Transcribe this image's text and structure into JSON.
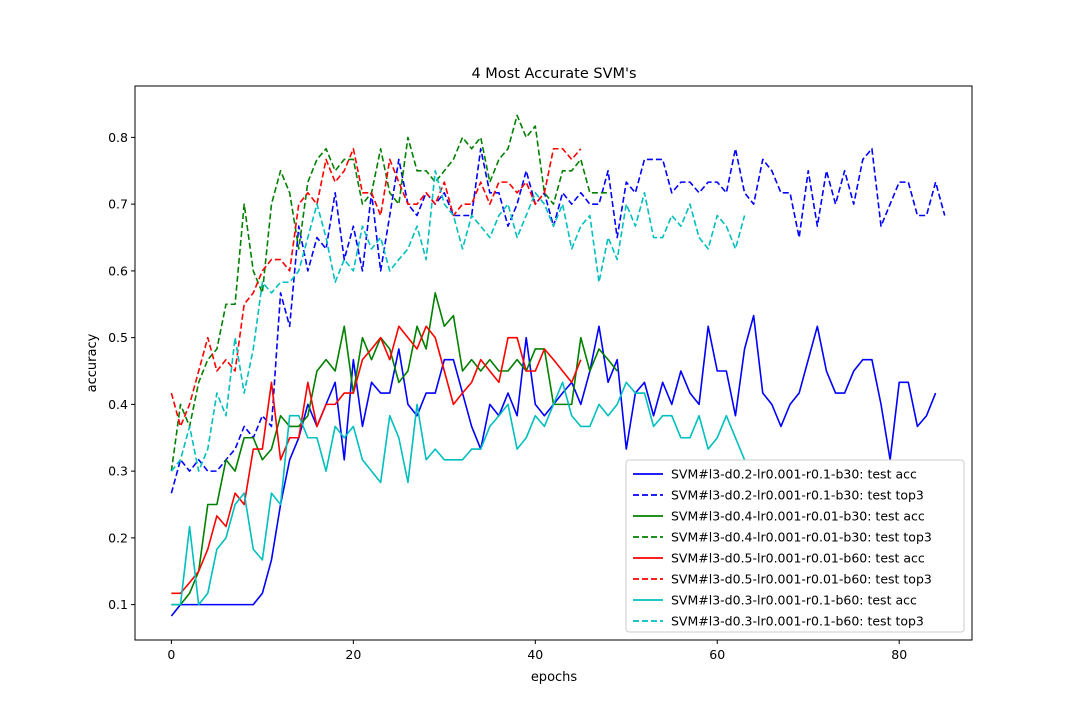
{
  "chart_data": {
    "type": "line",
    "title": "4 Most Accurate SVM's",
    "xlabel": "epochs",
    "ylabel": "accuracy",
    "xlim": [
      -4,
      88
    ],
    "ylim": [
      0.047,
      0.877
    ],
    "xticks": [
      0,
      20,
      40,
      60,
      80
    ],
    "yticks": [
      0.1,
      0.2,
      0.3,
      0.4,
      0.5,
      0.6,
      0.7,
      0.8
    ],
    "grid": false,
    "legend_position": "lower-right",
    "series": [
      {
        "name": "SVM#l3-d0.2-lr0.001-r0.1-b30: test acc",
        "color": "#0000ff",
        "dashed": false,
        "values": [
          0.083,
          0.1,
          0.1,
          0.1,
          0.1,
          0.1,
          0.1,
          0.1,
          0.1,
          0.1,
          0.117,
          0.167,
          0.25,
          0.317,
          0.35,
          0.4,
          0.367,
          0.4,
          0.433,
          0.317,
          0.467,
          0.367,
          0.433,
          0.417,
          0.417,
          0.483,
          0.4,
          0.383,
          0.417,
          0.417,
          0.467,
          0.467,
          0.417,
          0.367,
          0.333,
          0.4,
          0.383,
          0.417,
          0.383,
          0.5,
          0.4,
          0.383,
          0.4,
          0.417,
          0.433,
          0.4,
          0.45,
          0.517,
          0.433,
          0.467,
          0.333,
          0.417,
          0.433,
          0.383,
          0.433,
          0.4,
          0.45,
          0.417,
          0.4,
          0.517,
          0.45,
          0.45,
          0.383,
          0.483,
          0.533,
          0.417,
          0.4,
          0.367,
          0.4,
          0.417,
          0.467,
          0.517,
          0.45,
          0.417,
          0.417,
          0.45,
          0.467,
          0.467,
          0.4,
          0.317,
          0.433,
          0.433,
          0.367,
          0.383,
          0.417
        ]
      },
      {
        "name": "SVM#l3-d0.2-lr0.001-r0.1-b30: test top3",
        "color": "#0000ff",
        "dashed": true,
        "values": [
          0.267,
          0.317,
          0.3,
          0.317,
          0.3,
          0.3,
          0.317,
          0.333,
          0.367,
          0.35,
          0.383,
          0.367,
          0.567,
          0.517,
          0.667,
          0.6,
          0.65,
          0.633,
          0.717,
          0.617,
          0.667,
          0.6,
          0.717,
          0.6,
          0.683,
          0.767,
          0.7,
          0.683,
          0.717,
          0.7,
          0.717,
          0.683,
          0.683,
          0.683,
          0.783,
          0.717,
          0.717,
          0.667,
          0.7,
          0.75,
          0.7,
          0.717,
          0.667,
          0.717,
          0.7,
          0.717,
          0.7,
          0.7,
          0.75,
          0.65,
          0.733,
          0.717,
          0.767,
          0.767,
          0.767,
          0.717,
          0.733,
          0.733,
          0.717,
          0.733,
          0.733,
          0.717,
          0.783,
          0.717,
          0.7,
          0.767,
          0.75,
          0.717,
          0.717,
          0.65,
          0.75,
          0.667,
          0.75,
          0.7,
          0.75,
          0.7,
          0.767,
          0.783,
          0.667,
          0.7,
          0.733,
          0.733,
          0.683,
          0.683,
          0.733,
          0.683
        ]
      },
      {
        "name": "SVM#l3-d0.4-lr0.001-r0.01-b30: test acc",
        "color": "#008000",
        "dashed": false,
        "values": [
          0.1,
          0.1,
          0.117,
          0.15,
          0.25,
          0.25,
          0.317,
          0.3,
          0.35,
          0.35,
          0.317,
          0.333,
          0.383,
          0.367,
          0.367,
          0.383,
          0.45,
          0.467,
          0.45,
          0.517,
          0.417,
          0.5,
          0.467,
          0.5,
          0.483,
          0.433,
          0.45,
          0.517,
          0.483,
          0.567,
          0.517,
          0.533,
          0.45,
          0.467,
          0.45,
          0.467,
          0.45,
          0.45,
          0.467,
          0.45,
          0.483,
          0.483,
          0.4,
          0.4,
          0.4,
          0.5,
          0.45,
          0.483,
          0.467,
          0.45
        ]
      },
      {
        "name": "SVM#l3-d0.4-lr0.001-r0.01-b30: test top3",
        "color": "#008000",
        "dashed": true,
        "values": [
          0.3,
          0.4,
          0.367,
          0.433,
          0.467,
          0.483,
          0.55,
          0.55,
          0.7,
          0.6,
          0.567,
          0.7,
          0.75,
          0.717,
          0.633,
          0.733,
          0.767,
          0.783,
          0.75,
          0.767,
          0.767,
          0.7,
          0.717,
          0.783,
          0.717,
          0.7,
          0.8,
          0.75,
          0.75,
          0.733,
          0.75,
          0.767,
          0.8,
          0.783,
          0.8,
          0.733,
          0.767,
          0.783,
          0.833,
          0.8,
          0.817,
          0.717,
          0.7,
          0.75,
          0.75,
          0.767,
          0.717,
          0.717,
          0.717
        ]
      },
      {
        "name": "SVM#l3-d0.5-lr0.001-r0.01-b60: test acc",
        "color": "#ff0000",
        "dashed": false,
        "values": [
          0.117,
          0.117,
          0.133,
          0.15,
          0.183,
          0.233,
          0.217,
          0.267,
          0.25,
          0.333,
          0.333,
          0.433,
          0.317,
          0.35,
          0.35,
          0.433,
          0.367,
          0.4,
          0.4,
          0.417,
          0.417,
          0.467,
          0.483,
          0.5,
          0.467,
          0.517,
          0.5,
          0.483,
          0.517,
          0.5,
          0.45,
          0.4,
          0.417,
          0.433,
          0.467,
          0.45,
          0.433,
          0.5,
          0.5,
          0.45,
          0.45,
          0.483,
          0.467,
          0.45,
          0.433,
          0.467
        ]
      },
      {
        "name": "SVM#l3-d0.5-lr0.001-r0.01-b60: test top3",
        "color": "#ff0000",
        "dashed": true,
        "values": [
          0.417,
          0.367,
          0.4,
          0.45,
          0.5,
          0.45,
          0.467,
          0.45,
          0.55,
          0.567,
          0.6,
          0.617,
          0.617,
          0.6,
          0.7,
          0.717,
          0.7,
          0.767,
          0.733,
          0.75,
          0.783,
          0.717,
          0.717,
          0.683,
          0.767,
          0.733,
          0.7,
          0.7,
          0.717,
          0.7,
          0.733,
          0.683,
          0.7,
          0.7,
          0.733,
          0.7,
          0.733,
          0.733,
          0.717,
          0.733,
          0.7,
          0.717,
          0.783,
          0.783,
          0.767,
          0.783
        ]
      },
      {
        "name": "SVM#l3-d0.3-lr0.001-r0.1-b60: test acc",
        "color": "#00bfbf",
        "dashed": false,
        "values": [
          0.1,
          0.1,
          0.217,
          0.1,
          0.117,
          0.183,
          0.2,
          0.25,
          0.267,
          0.183,
          0.167,
          0.267,
          0.25,
          0.383,
          0.383,
          0.35,
          0.35,
          0.3,
          0.367,
          0.35,
          0.367,
          0.317,
          0.3,
          0.283,
          0.383,
          0.35,
          0.283,
          0.4,
          0.317,
          0.333,
          0.317,
          0.317,
          0.317,
          0.333,
          0.333,
          0.367,
          0.383,
          0.4,
          0.333,
          0.35,
          0.383,
          0.367,
          0.4,
          0.433,
          0.383,
          0.367,
          0.367,
          0.4,
          0.383,
          0.4,
          0.433,
          0.417,
          0.417,
          0.367,
          0.383,
          0.383,
          0.35,
          0.35,
          0.383,
          0.333,
          0.35,
          0.383,
          0.35,
          0.317
        ]
      },
      {
        "name": "SVM#l3-d0.3-lr0.001-r0.1-b60: test top3",
        "color": "#00bfbf",
        "dashed": true,
        "values": [
          0.3,
          0.317,
          0.367,
          0.3,
          0.333,
          0.417,
          0.383,
          0.5,
          0.417,
          0.483,
          0.583,
          0.567,
          0.583,
          0.583,
          0.6,
          0.65,
          0.7,
          0.65,
          0.583,
          0.617,
          0.6,
          0.667,
          0.633,
          0.65,
          0.6,
          0.617,
          0.633,
          0.667,
          0.617,
          0.75,
          0.7,
          0.683,
          0.633,
          0.683,
          0.667,
          0.65,
          0.683,
          0.7,
          0.65,
          0.683,
          0.717,
          0.7,
          0.667,
          0.7,
          0.633,
          0.667,
          0.683,
          0.583,
          0.65,
          0.617,
          0.7,
          0.667,
          0.717,
          0.65,
          0.65,
          0.683,
          0.667,
          0.7,
          0.65,
          0.633,
          0.683,
          0.667,
          0.633,
          0.683
        ]
      }
    ]
  }
}
